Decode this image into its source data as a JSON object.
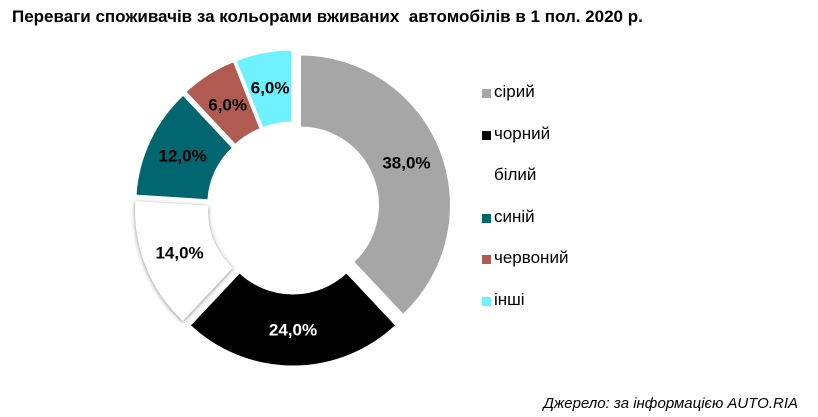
{
  "title": "Переваги споживачів за кольорами вживаних  автомобілів в 1 пол. 2020 р.",
  "source": "Джерело: за інформацією AUTO.RIA",
  "chart_data": {
    "type": "pie",
    "title": "Переваги споживачів за кольорами вживаних  автомобілів в 1 пол. 2020 р.",
    "legend_position": "right",
    "slices": [
      {
        "name": "сірий",
        "value": 38.0,
        "label": "38,0%",
        "color": "#a6a6a6",
        "label_color": "#000000"
      },
      {
        "name": "чорний",
        "value": 24.0,
        "label": "24,0%",
        "color": "#000000",
        "label_color": "#ffffff"
      },
      {
        "name": "білий",
        "value": 14.0,
        "label": "14,0%",
        "color": "#ffffff",
        "label_color": "#000000"
      },
      {
        "name": "синій",
        "value": 12.0,
        "label": "12,0%",
        "color": "#016670",
        "label_color": "#000000"
      },
      {
        "name": "червоний",
        "value": 6.0,
        "label": "6,0%",
        "color": "#b05a52",
        "label_color": "#000000"
      },
      {
        "name": "інші",
        "value": 6.0,
        "label": "6,0%",
        "color": "#6ff2ff",
        "label_color": "#000000"
      }
    ]
  }
}
